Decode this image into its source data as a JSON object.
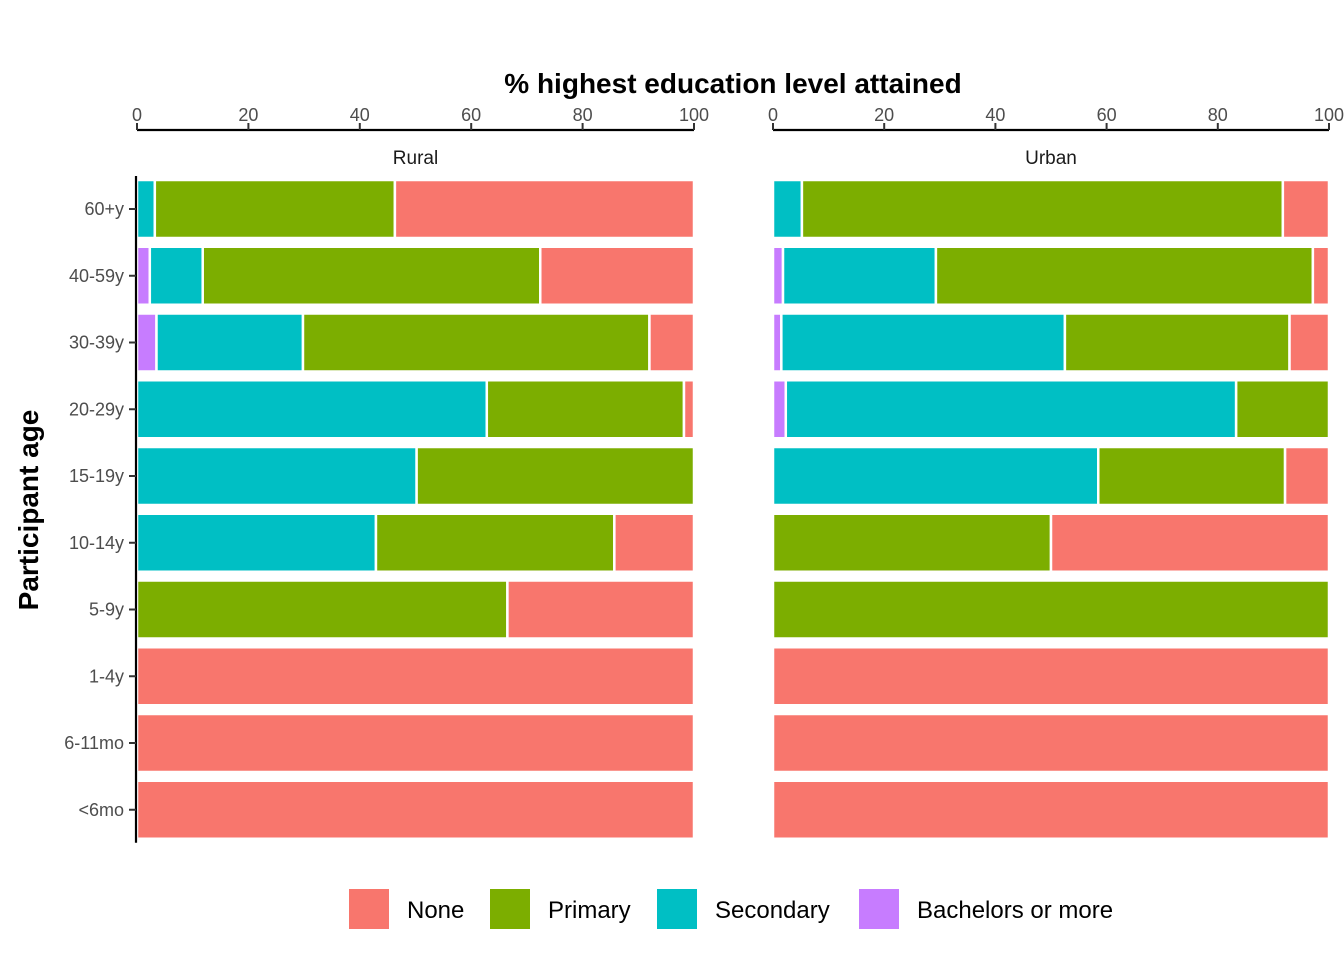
{
  "chart_data": {
    "type": "bar",
    "orientation": "horizontal",
    "stacked": true,
    "title": "% highest education level attained",
    "xlabel": "% highest education level attained",
    "ylabel": "Participant age",
    "xlim": [
      0,
      100
    ],
    "x_ticks": [
      "0",
      "20",
      "40",
      "60",
      "80",
      "100"
    ],
    "x_axis_position": "top",
    "grid": false,
    "legend_position": "bottom",
    "categories": [
      "60+y",
      "40-59y",
      "30-39y",
      "20-29y",
      "15-19y",
      "10-14y",
      "5-9y",
      "1-4y",
      "6-11mo",
      "<6mo"
    ],
    "colors": {
      "None": "#F8766D",
      "Primary": "#7CAE00",
      "Secondary": "#00BFC4",
      "Bachelors or more": "#C77CFF"
    },
    "stack_order": [
      "Bachelors or more",
      "Secondary",
      "Primary",
      "None"
    ],
    "legend": [
      "None",
      "Primary",
      "Secondary",
      "Bachelors or more"
    ],
    "panels": [
      {
        "name": "Rural",
        "series": [
          {
            "name": "Bachelors or more",
            "values": [
              0,
              2.3,
              3.5,
              0,
              0,
              0,
              0,
              0,
              0,
              0
            ]
          },
          {
            "name": "Secondary",
            "values": [
              3.2,
              9.5,
              26.3,
              62.8,
              50.2,
              42.9,
              0,
              0,
              0,
              0
            ]
          },
          {
            "name": "Primary",
            "values": [
              43.1,
              60.6,
              62.2,
              35.4,
              49.8,
              42.8,
              66.5,
              0,
              0,
              0
            ]
          },
          {
            "name": "None",
            "values": [
              53.7,
              27.6,
              8.0,
              1.8,
              0,
              14.3,
              33.5,
              100,
              100,
              100
            ]
          }
        ]
      },
      {
        "name": "Urban",
        "series": [
          {
            "name": "Bachelors or more",
            "values": [
              0,
              1.8,
              1.5,
              2.3,
              0,
              0,
              0,
              0,
              0,
              0
            ]
          },
          {
            "name": "Secondary",
            "values": [
              5.2,
              27.5,
              51.0,
              81.0,
              58.5,
              0,
              0,
              0,
              0,
              0
            ]
          },
          {
            "name": "Primary",
            "values": [
              86.5,
              67.8,
              40.4,
              16.7,
              33.6,
              50.0,
              100,
              0,
              0,
              0
            ]
          },
          {
            "name": "None",
            "values": [
              8.3,
              2.9,
              7.1,
              0,
              7.9,
              50.0,
              0,
              100,
              100,
              100
            ]
          }
        ]
      }
    ]
  }
}
